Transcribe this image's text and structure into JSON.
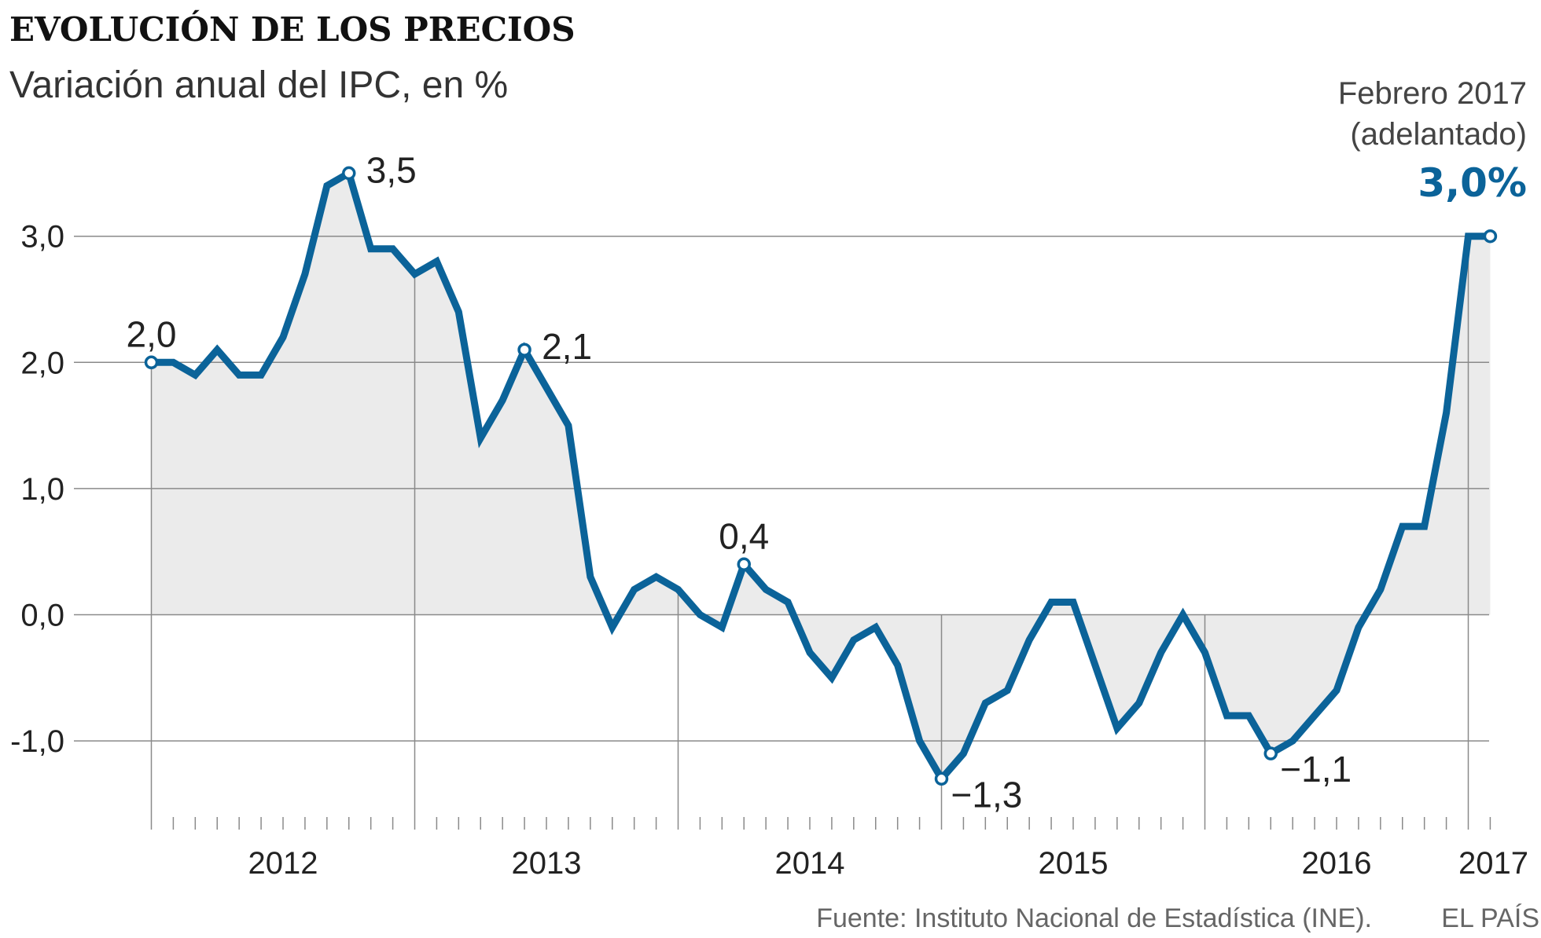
{
  "title": "EVOLUCIÓN DE LOS PRECIOS",
  "subtitle": "Variación anual del IPC, en %",
  "source": "Fuente: Instituto Nacional de Estadística (INE).",
  "brand": "EL PAÍS",
  "colors": {
    "line": "#0b6399",
    "area": "#ebebeb",
    "grid": "#8a8a8a"
  },
  "callout": {
    "line1": "Febrero 2017",
    "line2": "(adelantado)",
    "value": "3,0%"
  },
  "chart_data": {
    "type": "line",
    "title": "EVOLUCIÓN DE LOS PRECIOS",
    "subtitle": "Variación anual del IPC, en %",
    "x_start": "2012-01",
    "x_frequency": "monthly",
    "x_tick_labels": [
      "2012",
      "2013",
      "2014",
      "2015",
      "2016",
      "2017"
    ],
    "y_tick_values": [
      3.0,
      2.0,
      1.0,
      0.0,
      -1.0
    ],
    "y_tick_labels": [
      "3,0",
      "2,0",
      "1,0",
      "0,0",
      "-1,0"
    ],
    "ylim": [
      -1.7,
      3.6
    ],
    "grid": "horizontal",
    "area_fill": true,
    "values": [
      2.0,
      2.0,
      1.9,
      2.1,
      1.9,
      1.9,
      2.2,
      2.7,
      3.4,
      3.5,
      2.9,
      2.9,
      2.7,
      2.8,
      2.4,
      1.4,
      1.7,
      2.1,
      1.8,
      1.5,
      0.3,
      -0.1,
      0.2,
      0.3,
      0.2,
      0.0,
      -0.1,
      0.4,
      0.2,
      0.1,
      -0.3,
      -0.5,
      -0.2,
      -0.1,
      -0.4,
      -1.0,
      -1.3,
      -1.1,
      -0.7,
      -0.6,
      -0.2,
      0.1,
      0.1,
      -0.4,
      -0.9,
      -0.7,
      -0.3,
      0.0,
      -0.3,
      -0.8,
      -0.8,
      -1.1,
      -1.0,
      -0.8,
      -0.6,
      -0.1,
      0.2,
      0.7,
      0.7,
      1.6,
      3.0,
      3.0
    ],
    "annotations": [
      {
        "index": 0,
        "label": "2,0",
        "pos": "above"
      },
      {
        "index": 9,
        "label": "3,5",
        "pos": "right"
      },
      {
        "index": 17,
        "label": "2,1",
        "pos": "right"
      },
      {
        "index": 27,
        "label": "0,4",
        "pos": "above"
      },
      {
        "index": 36,
        "label": "−1,3",
        "pos": "below-right"
      },
      {
        "index": 51,
        "label": "−1,1",
        "pos": "below-right"
      },
      {
        "index": 61,
        "label": "",
        "pos": "none"
      }
    ]
  }
}
